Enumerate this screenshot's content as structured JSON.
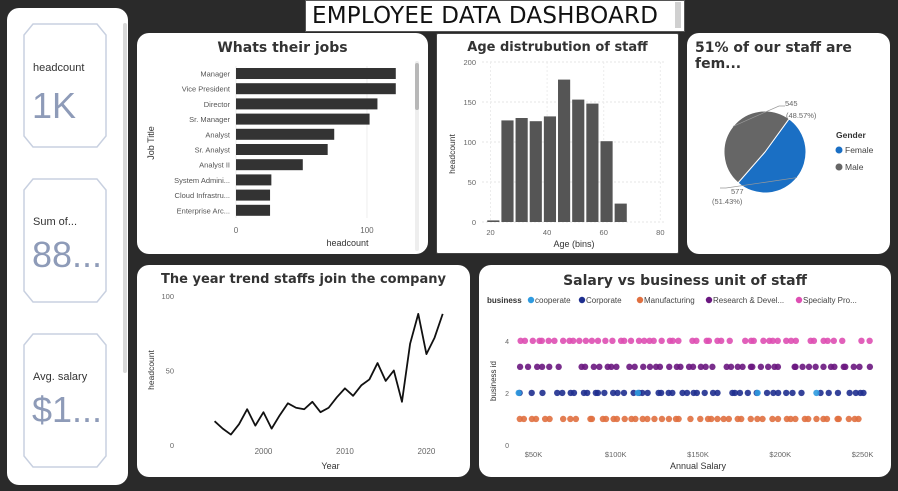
{
  "header": {
    "title": "EMPLOYEE DATA DASHBOARD"
  },
  "kpis": [
    {
      "label": "headcount",
      "value": "1K"
    },
    {
      "label": "Sum of...",
      "value": "88..."
    },
    {
      "label": "Avg. salary",
      "value": "$1..."
    }
  ],
  "jobs": {
    "title": "Whats their jobs",
    "chart_data": {
      "type": "bar",
      "orientation": "horizontal",
      "categories": [
        "Manager",
        "Vice President",
        "Director",
        "Sr. Manager",
        "Analyst",
        "Sr. Analyst",
        "Analyst II",
        "System Admini...",
        "Cloud Infrastru...",
        "Enterprise Arc..."
      ],
      "values": [
        122,
        122,
        108,
        102,
        75,
        70,
        51,
        27,
        26,
        26
      ],
      "xlabel": "headcount",
      "ylabel": "Job Title",
      "xticks": [
        0,
        100
      ],
      "xlim": [
        0,
        155
      ],
      "color": "#333333"
    }
  },
  "age": {
    "title": "Age distrubution of staff",
    "chart_data": {
      "type": "bar",
      "histogram": true,
      "x": [
        21,
        26,
        31,
        36,
        41,
        46,
        51,
        56,
        61,
        66
      ],
      "values": [
        2,
        127,
        130,
        126,
        132,
        178,
        153,
        148,
        101,
        23
      ],
      "bin_width": 5,
      "xlabel": "Age (bins)",
      "ylabel": "headcount",
      "xticks": [
        20,
        40,
        60,
        80
      ],
      "yticks": [
        0,
        50,
        100,
        150,
        200
      ],
      "xlim": [
        17,
        82
      ],
      "ylim": [
        0,
        200
      ],
      "color": "#555555"
    }
  },
  "gender": {
    "title": "51% of our staff are fem...",
    "legend_title": "Gender",
    "chart_data": {
      "type": "pie",
      "categories": [
        "Female",
        "Male"
      ],
      "values": [
        577,
        545
      ],
      "percent_labels": [
        "(51.43%)",
        "(48.57%)"
      ],
      "colors": [
        "#1a6fc4",
        "#666666"
      ]
    }
  },
  "trend": {
    "title": "The year trend staffs join the company",
    "chart_data": {
      "type": "line",
      "x": [
        1994,
        1995,
        1996,
        1997,
        1998,
        1999,
        2000,
        2001,
        2002,
        2003,
        2004,
        2005,
        2006,
        2007,
        2008,
        2009,
        2010,
        2011,
        2012,
        2013,
        2014,
        2015,
        2016,
        2017,
        2018,
        2019,
        2020,
        2021,
        2022
      ],
      "values": [
        16,
        11,
        7,
        14,
        24,
        13,
        22,
        11,
        20,
        28,
        25,
        24,
        29,
        22,
        25,
        32,
        38,
        33,
        40,
        44,
        55,
        43,
        50,
        29,
        68,
        88,
        61,
        72,
        88
      ],
      "xlabel": "Year",
      "ylabel": "headcount",
      "xticks": [
        2000,
        2010,
        2020
      ],
      "yticks": [
        0,
        50,
        100
      ],
      "xlim": [
        1990,
        2024
      ],
      "ylim": [
        0,
        100
      ],
      "color": "#111111"
    }
  },
  "salary": {
    "title": "Salary vs business unit of staff",
    "legend_title": "business",
    "chart_data": {
      "type": "scatter",
      "xlabel": "Annual Salary",
      "ylabel": "business id",
      "xticks": [
        "$50K",
        "$100K",
        "$150K",
        "$200K",
        "$250K"
      ],
      "xtick_values": [
        50000,
        100000,
        150000,
        200000,
        250000
      ],
      "yticks": [
        0,
        2,
        4
      ],
      "xlim": [
        40000,
        260000
      ],
      "ylim": [
        0,
        4.3
      ],
      "x_range": [
        40000,
        258000
      ],
      "series": [
        {
          "name": "cooperate",
          "color": "#2f9be0",
          "y": 2
        },
        {
          "name": "Corporate",
          "color": "#1f2f8f",
          "y": 2
        },
        {
          "name": "Manufacturing",
          "color": "#e07040",
          "y": 1
        },
        {
          "name": "Research & Devel...",
          "color": "#6a1780",
          "y": 3
        },
        {
          "name": "Specialty Pro...",
          "color": "#de4fb3",
          "y": 4
        }
      ]
    }
  }
}
